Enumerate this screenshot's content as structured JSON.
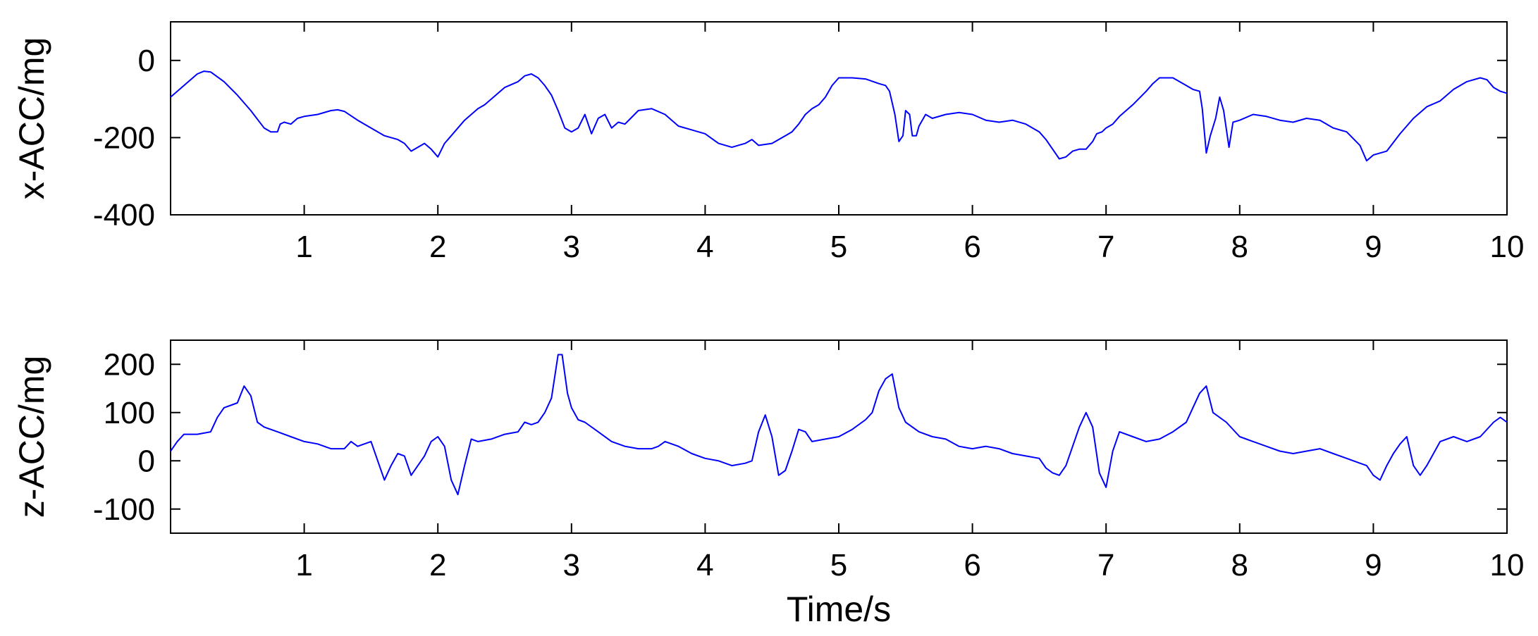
{
  "chart_data": [
    {
      "type": "line",
      "xlabel": "",
      "ylabel": "x-ACC/mg",
      "xlim": [
        0,
        10
      ],
      "ylim": [
        -400,
        100
      ],
      "xticks": [
        1,
        2,
        3,
        4,
        5,
        6,
        7,
        8,
        9,
        10
      ],
      "yticks": [
        -400,
        -200,
        0
      ],
      "grid": false,
      "series_color": "#0000ff",
      "x": [
        0,
        0.1,
        0.2,
        0.25,
        0.3,
        0.4,
        0.5,
        0.6,
        0.7,
        0.75,
        0.8,
        0.82,
        0.85,
        0.9,
        0.95,
        1.0,
        1.1,
        1.2,
        1.25,
        1.3,
        1.4,
        1.5,
        1.6,
        1.7,
        1.75,
        1.8,
        1.85,
        1.9,
        1.95,
        2.0,
        2.05,
        2.1,
        2.2,
        2.3,
        2.35,
        2.4,
        2.5,
        2.6,
        2.65,
        2.7,
        2.75,
        2.8,
        2.85,
        2.9,
        2.95,
        3.0,
        3.05,
        3.1,
        3.15,
        3.2,
        3.25,
        3.3,
        3.35,
        3.4,
        3.5,
        3.6,
        3.7,
        3.8,
        3.9,
        4.0,
        4.1,
        4.2,
        4.3,
        4.35,
        4.4,
        4.5,
        4.6,
        4.65,
        4.7,
        4.75,
        4.8,
        4.85,
        4.9,
        4.95,
        5.0,
        5.1,
        5.2,
        5.3,
        5.35,
        5.38,
        5.42,
        5.45,
        5.48,
        5.5,
        5.53,
        5.55,
        5.58,
        5.6,
        5.65,
        5.7,
        5.8,
        5.9,
        6.0,
        6.1,
        6.2,
        6.3,
        6.4,
        6.5,
        6.55,
        6.6,
        6.65,
        6.7,
        6.75,
        6.8,
        6.85,
        6.9,
        6.93,
        6.97,
        7.0,
        7.05,
        7.1,
        7.2,
        7.3,
        7.35,
        7.4,
        7.5,
        7.6,
        7.65,
        7.7,
        7.72,
        7.75,
        7.78,
        7.82,
        7.85,
        7.88,
        7.92,
        7.95,
        8.0,
        8.1,
        8.2,
        8.3,
        8.4,
        8.5,
        8.6,
        8.7,
        8.8,
        8.9,
        8.95,
        9.0,
        9.1,
        9.2,
        9.3,
        9.4,
        9.5,
        9.6,
        9.7,
        9.8,
        9.85,
        9.9,
        9.95,
        10.0
      ],
      "y": [
        -95,
        -65,
        -35,
        -28,
        -30,
        -55,
        -90,
        -130,
        -175,
        -185,
        -185,
        -165,
        -160,
        -165,
        -150,
        -145,
        -140,
        -130,
        -128,
        -132,
        -155,
        -175,
        -195,
        -205,
        -215,
        -235,
        -225,
        -215,
        -230,
        -250,
        -215,
        -195,
        -155,
        -125,
        -115,
        -100,
        -70,
        -55,
        -40,
        -35,
        -45,
        -65,
        -90,
        -130,
        -175,
        -185,
        -175,
        -140,
        -190,
        -150,
        -140,
        -175,
        -160,
        -165,
        -130,
        -125,
        -140,
        -170,
        -180,
        -190,
        -215,
        -225,
        -215,
        -205,
        -220,
        -215,
        -195,
        -185,
        -165,
        -140,
        -125,
        -115,
        -95,
        -65,
        -45,
        -45,
        -48,
        -60,
        -65,
        -80,
        -140,
        -210,
        -195,
        -130,
        -140,
        -195,
        -195,
        -170,
        -140,
        -150,
        -140,
        -135,
        -140,
        -155,
        -160,
        -155,
        -165,
        -185,
        -205,
        -230,
        -255,
        -250,
        -235,
        -230,
        -230,
        -210,
        -190,
        -185,
        -175,
        -165,
        -145,
        -115,
        -80,
        -60,
        -45,
        -45,
        -65,
        -75,
        -80,
        -125,
        -240,
        -195,
        -150,
        -95,
        -130,
        -225,
        -160,
        -155,
        -140,
        -145,
        -155,
        -160,
        -150,
        -155,
        -175,
        -185,
        -220,
        -260,
        -245,
        -235,
        -190,
        -150,
        -120,
        -105,
        -75,
        -55,
        -45,
        -50,
        -70,
        -80,
        -85
      ]
    },
    {
      "type": "line",
      "xlabel": "Time/s",
      "ylabel": "z-ACC/mg",
      "xlim": [
        0,
        10
      ],
      "ylim": [
        -150,
        250
      ],
      "xticks": [
        1,
        2,
        3,
        4,
        5,
        6,
        7,
        8,
        9,
        10
      ],
      "yticks": [
        -100,
        0,
        100,
        200
      ],
      "grid": false,
      "series_color": "#0000ff",
      "x": [
        0,
        0.05,
        0.1,
        0.2,
        0.3,
        0.35,
        0.4,
        0.45,
        0.5,
        0.55,
        0.6,
        0.65,
        0.7,
        0.75,
        0.8,
        0.9,
        1.0,
        1.1,
        1.2,
        1.3,
        1.35,
        1.4,
        1.45,
        1.5,
        1.55,
        1.6,
        1.65,
        1.7,
        1.75,
        1.8,
        1.9,
        1.95,
        2.0,
        2.05,
        2.1,
        2.15,
        2.2,
        2.25,
        2.3,
        2.4,
        2.5,
        2.6,
        2.65,
        2.7,
        2.75,
        2.8,
        2.85,
        2.9,
        2.93,
        2.97,
        3.0,
        3.05,
        3.1,
        3.2,
        3.3,
        3.4,
        3.5,
        3.6,
        3.65,
        3.7,
        3.8,
        3.9,
        4.0,
        4.1,
        4.2,
        4.3,
        4.35,
        4.4,
        4.45,
        4.5,
        4.55,
        4.6,
        4.65,
        4.7,
        4.75,
        4.8,
        4.9,
        5.0,
        5.1,
        5.2,
        5.25,
        5.3,
        5.35,
        5.4,
        5.45,
        5.5,
        5.6,
        5.7,
        5.8,
        5.9,
        6.0,
        6.1,
        6.2,
        6.3,
        6.4,
        6.5,
        6.55,
        6.6,
        6.65,
        6.7,
        6.75,
        6.8,
        6.85,
        6.9,
        6.95,
        7.0,
        7.05,
        7.1,
        7.2,
        7.3,
        7.4,
        7.5,
        7.6,
        7.65,
        7.7,
        7.75,
        7.8,
        7.9,
        8.0,
        8.1,
        8.2,
        8.3,
        8.4,
        8.5,
        8.6,
        8.7,
        8.8,
        8.9,
        8.95,
        9.0,
        9.05,
        9.1,
        9.15,
        9.2,
        9.25,
        9.3,
        9.35,
        9.4,
        9.5,
        9.6,
        9.7,
        9.8,
        9.9,
        9.95,
        10.0
      ],
      "y": [
        20,
        40,
        55,
        55,
        60,
        90,
        110,
        115,
        120,
        155,
        135,
        80,
        70,
        65,
        60,
        50,
        40,
        35,
        25,
        25,
        40,
        30,
        35,
        40,
        0,
        -40,
        -10,
        15,
        10,
        -30,
        10,
        40,
        50,
        30,
        -40,
        -70,
        -10,
        45,
        40,
        45,
        55,
        60,
        80,
        75,
        80,
        100,
        130,
        220,
        220,
        140,
        110,
        85,
        80,
        60,
        40,
        30,
        25,
        25,
        30,
        40,
        30,
        15,
        5,
        0,
        -10,
        -5,
        0,
        60,
        95,
        50,
        -30,
        -20,
        20,
        65,
        60,
        40,
        45,
        50,
        65,
        85,
        100,
        145,
        170,
        180,
        110,
        80,
        60,
        50,
        45,
        30,
        25,
        30,
        25,
        15,
        10,
        5,
        -15,
        -25,
        -30,
        -10,
        30,
        70,
        100,
        70,
        -25,
        -55,
        20,
        60,
        50,
        40,
        45,
        60,
        80,
        110,
        140,
        155,
        100,
        80,
        50,
        40,
        30,
        20,
        15,
        20,
        25,
        15,
        5,
        -5,
        -10,
        -30,
        -40,
        -10,
        15,
        35,
        50,
        -10,
        -30,
        -10,
        40,
        50,
        40,
        50,
        80,
        90,
        80
      ]
    }
  ]
}
